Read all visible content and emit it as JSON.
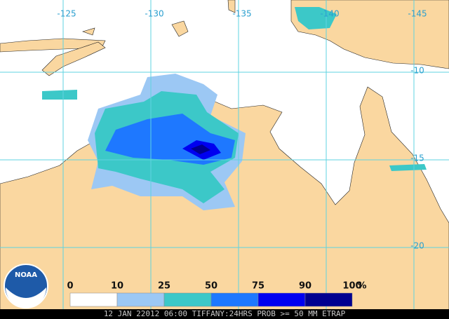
{
  "map": {
    "lon_labels": [
      -125,
      -130,
      -135,
      -140,
      -145
    ],
    "lat_labels": [
      -10,
      -15,
      -20
    ]
  },
  "legend": {
    "ticks": [
      0,
      10,
      25,
      50,
      75,
      90,
      100
    ],
    "unit": "%",
    "colors": [
      "#ffffff",
      "#9cc8f4",
      "#3cc8c8",
      "#1e78ff",
      "#0000f0",
      "#000090"
    ]
  },
  "logo": "NOAA",
  "caption": "12 JAN 22012 06:00 TIFFANY:24HRS PROB >= 50 MM ETRAP"
}
